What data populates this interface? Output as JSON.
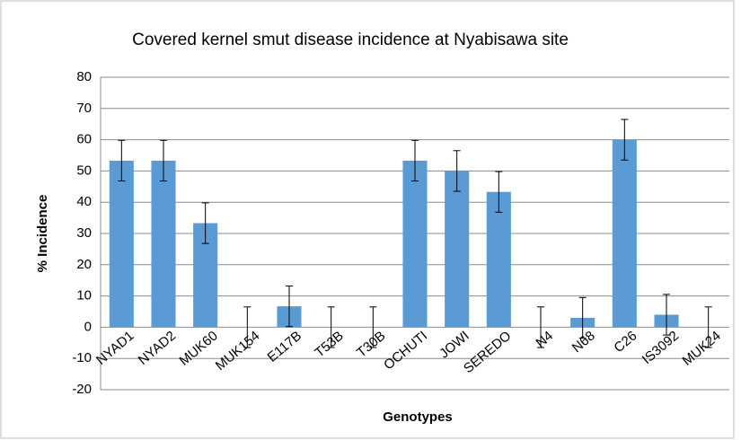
{
  "chart_data": {
    "type": "bar",
    "title": "Covered kernel smut disease incidence at Nyabisawa site",
    "x_label": "Genotypes",
    "y_label": "% Incidence",
    "categories": [
      "NYAD1",
      "NYAD2",
      "MUK60",
      "MUK154",
      "E117B",
      "T53B",
      "T30B",
      "OCHUTI",
      "JOWI",
      "SEREDO",
      "N4",
      "N68",
      "C26",
      "IS3092",
      "MUK24"
    ],
    "values": [
      53.3,
      53.3,
      33.3,
      0,
      6.7,
      0,
      0,
      53.3,
      50,
      43.3,
      0,
      3,
      60,
      4,
      0
    ],
    "errors": [
      6.5,
      6.5,
      6.5,
      6.5,
      6.5,
      6.5,
      6.5,
      6.5,
      6.5,
      6.5,
      6.5,
      6.5,
      6.5,
      6.5,
      6.5
    ],
    "color": "#5b9bd5",
    "ylim": [
      -20,
      80
    ],
    "yticks": [
      -20,
      -10,
      0,
      10,
      20,
      30,
      40,
      50,
      60,
      70,
      80
    ],
    "grid": true
  }
}
